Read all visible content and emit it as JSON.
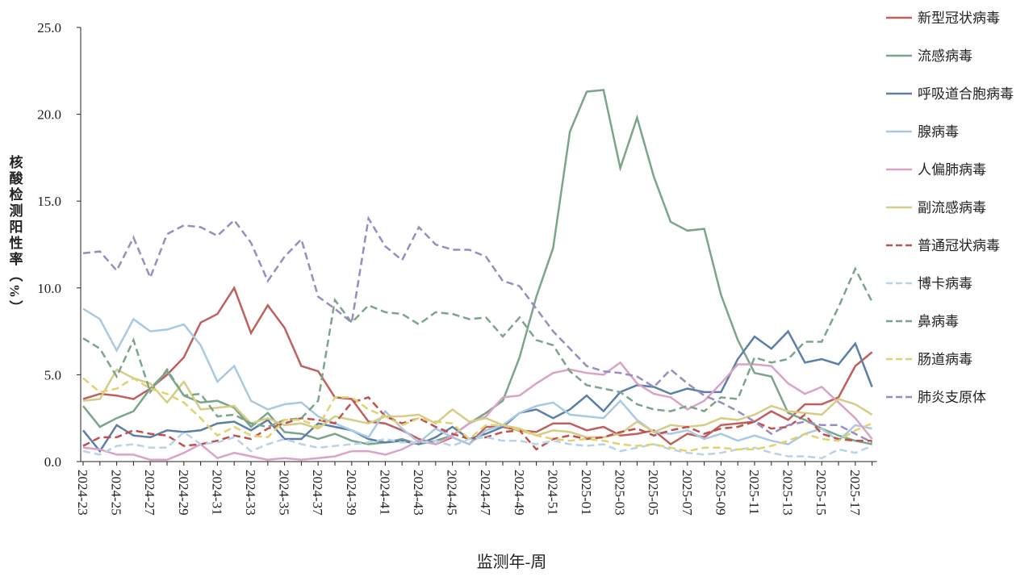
{
  "chart_data": {
    "type": "line",
    "y_label": "核酸检测阳性率（%）",
    "x_label": "监测年-周",
    "categories": [
      "2024-23",
      null,
      "2024-25",
      null,
      "2024-27",
      null,
      "2024-29",
      null,
      "2024-31",
      null,
      "2024-33",
      null,
      "2024-35",
      null,
      "2024-37",
      null,
      "2024-39",
      null,
      "2024-41",
      null,
      "2024-43",
      null,
      "2024-45",
      null,
      "2024-47",
      null,
      "2024-49",
      null,
      "2024-51",
      null,
      "2025-01",
      null,
      "2025-03",
      null,
      "2025-05",
      null,
      "2025-07",
      null,
      "2025-09",
      null,
      "2025-11",
      null,
      "2025-13",
      null,
      "2025-15",
      null,
      "2025-17",
      null
    ],
    "ylim": [
      0,
      25
    ],
    "yticks": [
      {
        "value": 0,
        "label": "0.0"
      },
      {
        "value": 5,
        "label": "5.0"
      },
      {
        "value": 10,
        "label": "10.0"
      },
      {
        "value": 15,
        "label": "15.0"
      },
      {
        "value": 20,
        "label": "20.0"
      },
      {
        "value": 25,
        "label": "25.0"
      }
    ],
    "legend": "right",
    "series": [
      {
        "name": "新型冠状病毒",
        "color": "#c0605c",
        "style": "solid",
        "values": [
          3.6,
          3.9,
          3.8,
          3.6,
          4.2,
          5.0,
          6.0,
          8.0,
          8.5,
          10.0,
          7.4,
          9.0,
          7.7,
          5.5,
          5.2,
          3.7,
          3.6,
          2.3,
          2.2,
          1.8,
          1.3,
          1.0,
          1.4,
          1.0,
          2.0,
          2.0,
          1.8,
          1.7,
          2.2,
          2.2,
          1.8,
          2.0,
          1.5,
          1.6,
          1.8,
          1.0,
          1.6,
          1.4,
          2.1,
          2.2,
          2.3,
          2.9,
          2.4,
          3.3,
          3.3,
          3.7,
          5.5,
          6.3
        ]
      },
      {
        "name": "流感病毒",
        "color": "#7aa58a",
        "style": "solid",
        "values": [
          3.2,
          2.0,
          2.5,
          2.9,
          4.2,
          5.2,
          3.8,
          3.4,
          3.5,
          3.1,
          2.0,
          2.8,
          1.7,
          1.6,
          1.3,
          1.6,
          1.2,
          1.0,
          1.1,
          1.3,
          1.0,
          1.2,
          1.5,
          2.2,
          2.8,
          3.5,
          6.0,
          9.5,
          12.3,
          19.0,
          21.3,
          21.4,
          16.9,
          19.8,
          16.4,
          13.8,
          13.3,
          13.4,
          9.6,
          7.0,
          5.1,
          4.9,
          2.8,
          2.4,
          1.9,
          1.5,
          1.2,
          1.0
        ]
      },
      {
        "name": "呼吸道合胞病毒",
        "color": "#5b7fa6",
        "style": "solid",
        "values": [
          1.8,
          0.6,
          2.1,
          1.5,
          1.4,
          1.8,
          1.7,
          1.8,
          2.2,
          2.3,
          1.8,
          2.4,
          1.3,
          1.3,
          2.2,
          2.0,
          1.8,
          1.3,
          1.1,
          1.2,
          1.0,
          1.4,
          2.0,
          1.3,
          1.6,
          2.0,
          2.8,
          3.0,
          2.5,
          3.0,
          3.8,
          2.9,
          4.0,
          4.4,
          4.3,
          3.9,
          4.2,
          4.0,
          4.0,
          5.9,
          7.2,
          6.5,
          7.5,
          5.7,
          5.9,
          5.6,
          6.8,
          4.3
        ]
      },
      {
        "name": "腺病毒",
        "color": "#a9c9e2",
        "style": "solid",
        "values": [
          8.8,
          8.2,
          6.4,
          8.2,
          7.5,
          7.6,
          7.9,
          6.7,
          4.6,
          5.5,
          3.5,
          3.0,
          3.3,
          3.4,
          2.6,
          2.2,
          1.8,
          1.4,
          2.9,
          1.9,
          1.1,
          1.9,
          1.4,
          1.0,
          1.8,
          2.1,
          2.8,
          3.2,
          3.4,
          2.7,
          2.6,
          2.5,
          3.5,
          2.4,
          1.7,
          1.6,
          1.8,
          1.3,
          1.6,
          1.2,
          1.5,
          1.2,
          1.0,
          1.6,
          1.9,
          1.2,
          2.1,
          1.9
        ]
      },
      {
        "name": "人偏肺病毒",
        "color": "#d9a3c9",
        "style": "solid",
        "values": [
          0.8,
          0.7,
          0.4,
          0.4,
          0.1,
          0.1,
          0.5,
          1.0,
          0.2,
          0.5,
          0.3,
          0.1,
          0.2,
          0.1,
          0.2,
          0.3,
          0.6,
          0.6,
          0.4,
          0.7,
          1.2,
          1.0,
          1.5,
          2.2,
          2.6,
          3.7,
          3.8,
          4.5,
          5.1,
          5.3,
          5.1,
          5.0,
          5.7,
          4.5,
          3.9,
          3.7,
          3.0,
          3.5,
          4.5,
          5.6,
          5.6,
          5.5,
          4.5,
          3.9,
          4.3,
          3.4,
          2.5,
          1.3
        ]
      },
      {
        "name": "副流感病毒",
        "color": "#d5cd85",
        "style": "solid",
        "values": [
          3.5,
          3.6,
          5.3,
          4.8,
          4.5,
          3.4,
          4.6,
          3.0,
          3.1,
          3.2,
          2.2,
          2.5,
          2.1,
          2.2,
          1.9,
          2.6,
          2.4,
          2.2,
          2.6,
          2.6,
          2.7,
          2.2,
          3.0,
          2.3,
          2.5,
          2.1,
          1.9,
          1.5,
          1.8,
          1.7,
          1.4,
          1.4,
          1.6,
          2.3,
          1.7,
          2.1,
          2.0,
          2.1,
          2.5,
          2.4,
          2.7,
          3.2,
          2.9,
          2.8,
          2.7,
          3.6,
          3.3,
          2.7
        ]
      },
      {
        "name": "普通冠状病毒",
        "color": "#c0504d",
        "style": "dashed",
        "values": [
          0.9,
          1.4,
          1.4,
          1.8,
          1.6,
          1.5,
          0.9,
          1.0,
          1.2,
          1.5,
          1.3,
          1.9,
          2.2,
          2.5,
          2.4,
          2.2,
          3.4,
          3.7,
          2.6,
          2.2,
          2.5,
          2.0,
          1.6,
          1.3,
          1.4,
          1.7,
          1.8,
          0.7,
          1.3,
          1.5,
          1.3,
          1.4,
          1.7,
          1.9,
          1.5,
          1.8,
          2.0,
          1.6,
          1.9,
          2.0,
          2.3,
          1.9,
          2.0,
          2.7,
          1.6,
          1.3,
          1.2,
          1.2
        ]
      },
      {
        "name": "博卡病毒",
        "color": "#b8d2ea",
        "style": "dashed",
        "values": [
          0.6,
          0.4,
          0.9,
          1.0,
          0.8,
          0.8,
          1.7,
          1.0,
          1.1,
          1.4,
          0.6,
          1.0,
          1.3,
          1.0,
          0.8,
          0.9,
          1.0,
          1.1,
          1.3,
          1.1,
          1.1,
          1.2,
          0.9,
          1.3,
          1.4,
          1.2,
          1.2,
          1.0,
          1.2,
          1.0,
          0.9,
          1.0,
          0.6,
          0.8,
          1.0,
          0.7,
          0.5,
          0.4,
          0.5,
          0.7,
          0.8,
          0.5,
          0.3,
          0.3,
          0.2,
          0.7,
          0.5,
          0.9
        ]
      },
      {
        "name": "鼻病毒",
        "color": "#7aa58a",
        "style": "dashed",
        "values": [
          7.1,
          6.5,
          4.9,
          7.0,
          4.0,
          5.3,
          3.8,
          3.9,
          2.6,
          2.7,
          2.2,
          2.0,
          2.4,
          2.5,
          3.5,
          9.3,
          8.0,
          9.0,
          8.6,
          8.5,
          7.9,
          8.6,
          8.5,
          8.2,
          8.3,
          7.2,
          8.3,
          7.0,
          6.7,
          5.2,
          4.4,
          4.2,
          4.0,
          3.3,
          3.0,
          2.9,
          3.2,
          2.9,
          3.7,
          3.6,
          6.0,
          5.7,
          5.9,
          6.9,
          6.9,
          8.9,
          11.1,
          9.2
        ]
      },
      {
        "name": "肠道病毒",
        "color": "#e2d26f",
        "style": "dashed",
        "values": [
          4.8,
          4.0,
          4.2,
          4.8,
          4.2,
          3.9,
          3.4,
          2.5,
          1.5,
          2.0,
          1.5,
          1.4,
          2.4,
          2.4,
          2.0,
          3.7,
          3.7,
          3.0,
          2.6,
          2.1,
          2.5,
          2.3,
          2.2,
          1.3,
          2.1,
          2.1,
          1.8,
          1.5,
          1.3,
          1.2,
          1.3,
          1.2,
          1.0,
          0.9,
          1.0,
          0.8,
          0.6,
          0.8,
          0.8,
          0.7,
          0.7,
          0.9,
          1.2,
          1.6,
          1.3,
          1.2,
          1.8,
          2.2
        ]
      },
      {
        "name": "肺炎支原体",
        "color": "#9b8bc2",
        "style": "dashed",
        "values": [
          12.0,
          12.1,
          11.0,
          12.9,
          10.6,
          13.1,
          13.6,
          13.5,
          13.0,
          13.9,
          12.6,
          10.4,
          11.8,
          12.8,
          9.5,
          8.8,
          8.0,
          14.0,
          12.4,
          11.6,
          13.5,
          12.5,
          12.2,
          12.2,
          11.8,
          10.4,
          10.1,
          8.8,
          7.5,
          6.5,
          5.5,
          5.2,
          5.1,
          4.9,
          4.3,
          5.3,
          4.5,
          3.8,
          3.4,
          2.9,
          2.3,
          1.6,
          2.1,
          2.3,
          2.1,
          2.1,
          1.6,
          1.1
        ]
      }
    ]
  }
}
